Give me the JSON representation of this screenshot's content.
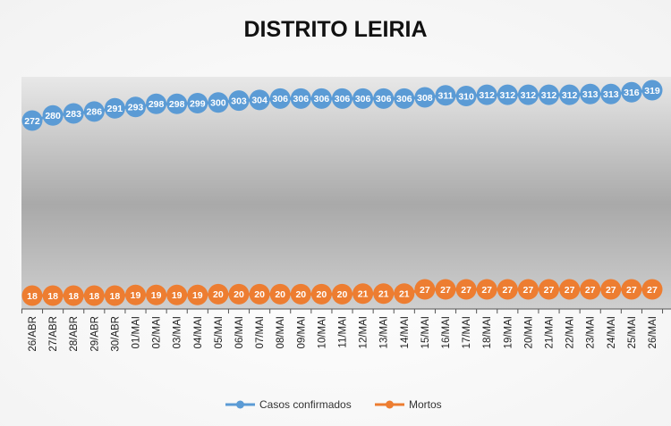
{
  "chart_data": {
    "type": "line",
    "title": "DISTRITO LEIRIA",
    "xlabel": "",
    "ylabel": "",
    "grid": false,
    "legend_position": "bottom",
    "categories": [
      "26/ABR",
      "27/ABR",
      "28/ABR",
      "29/ABR",
      "30/ABR",
      "01/MAI",
      "02/MAI",
      "03/MAI",
      "04/MAI",
      "05/MAI",
      "06/MAI",
      "07/MAI",
      "08/MAI",
      "09/MAI",
      "10/MAI",
      "11/MAI",
      "12/MAI",
      "13/MAI",
      "14/MAI",
      "15/MAI",
      "16/MAI",
      "17/MAI",
      "18/MAI",
      "19/MAI",
      "20/MAI",
      "21/MAI",
      "22/MAI",
      "23/MAI",
      "24/MAI",
      "25/MAI",
      "26/MAI"
    ],
    "series": [
      {
        "name": "Casos confirmados",
        "color": "#5B9BD5",
        "values": [
          272,
          280,
          283,
          286,
          291,
          293,
          298,
          298,
          299,
          300,
          303,
          304,
          306,
          306,
          306,
          306,
          306,
          306,
          306,
          308,
          311,
          310,
          312,
          312,
          312,
          312,
          312,
          313,
          313,
          316,
          319
        ]
      },
      {
        "name": "Mortos",
        "color": "#ED7D31",
        "values": [
          18,
          18,
          18,
          18,
          18,
          19,
          19,
          19,
          19,
          20,
          20,
          20,
          20,
          20,
          20,
          20,
          21,
          21,
          21,
          27,
          27,
          27,
          27,
          27,
          27,
          27,
          27,
          27,
          27,
          27,
          27
        ]
      }
    ]
  }
}
